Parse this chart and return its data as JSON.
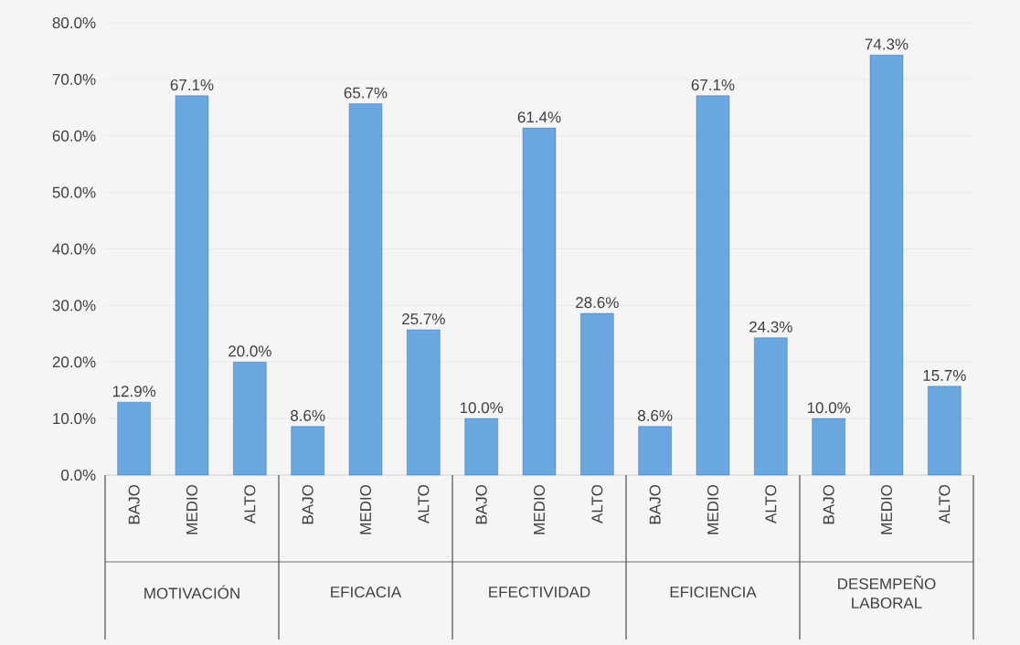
{
  "chart_data": {
    "type": "bar",
    "categories": [
      "BAJO",
      "MEDIO",
      "ALTO",
      "BAJO",
      "MEDIO",
      "ALTO",
      "BAJO",
      "MEDIO",
      "ALTO",
      "BAJO",
      "MEDIO",
      "ALTO",
      "BAJO",
      "MEDIO",
      "ALTO"
    ],
    "values": [
      12.9,
      67.1,
      20.0,
      8.6,
      65.7,
      25.7,
      10.0,
      61.4,
      28.6,
      8.6,
      67.1,
      24.3,
      10.0,
      74.3,
      15.7
    ],
    "value_labels": [
      "12.9%",
      "67.1%",
      "20.0%",
      "8.6%",
      "65.7%",
      "25.7%",
      "10.0%",
      "61.4%",
      "28.6%",
      "8.6%",
      "67.1%",
      "24.3%",
      "10.0%",
      "74.3%",
      "15.7%"
    ],
    "color": "#6aa6e0",
    "ylim": [
      0,
      80
    ],
    "yticks": [
      {
        "value": 0,
        "label": "0.0%"
      },
      {
        "value": 10,
        "label": "10.0%"
      },
      {
        "value": 20,
        "label": "20.0%"
      },
      {
        "value": 30,
        "label": "30.0%"
      },
      {
        "value": 40,
        "label": "40.0%"
      },
      {
        "value": 50,
        "label": "50.0%"
      },
      {
        "value": 60,
        "label": "60.0%"
      },
      {
        "value": 70,
        "label": "70.0%"
      },
      {
        "value": 80,
        "label": "80.0%"
      }
    ],
    "grid": "y",
    "annotations": [
      "MOTIVACIÓN",
      "EFICACIA",
      "EFECTIVIDAD",
      "EFICIENCIA",
      "DESEMPEÑO LABORAL"
    ]
  }
}
